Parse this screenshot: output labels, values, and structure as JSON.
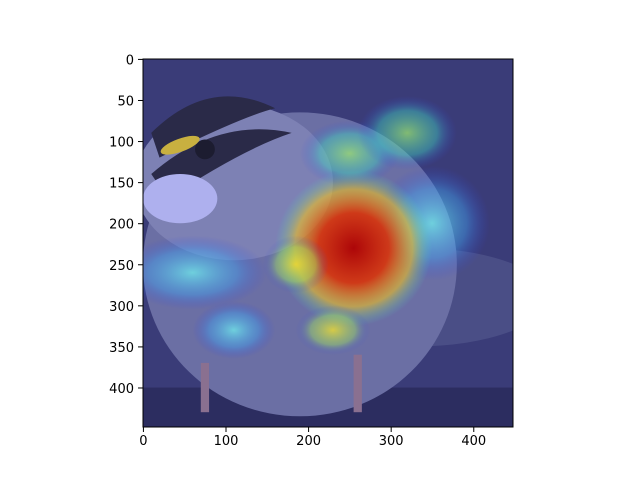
{
  "chart_data": {
    "type": "image",
    "xlim": [
      -0.5,
      447.5
    ],
    "ylim": [
      447.5,
      -0.5
    ],
    "xticks": [
      0,
      100,
      200,
      300,
      400
    ],
    "yticks": [
      0,
      50,
      100,
      150,
      200,
      250,
      300,
      350,
      400
    ]
  }
}
